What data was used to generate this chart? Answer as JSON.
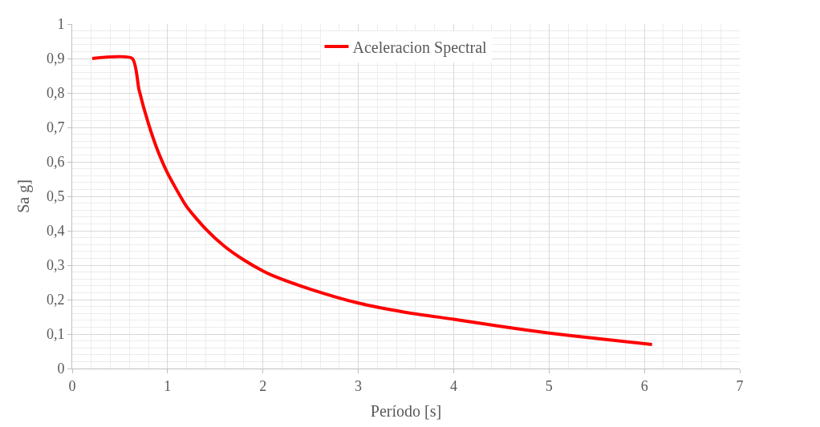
{
  "chart_data": {
    "type": "line",
    "xlabel": "Período [s]",
    "ylabel": "Sa g]",
    "legend": "top",
    "grid": true,
    "marker": "none",
    "line_style": "solid",
    "xlim": [
      0,
      7
    ],
    "xticks": [
      0,
      1,
      2,
      3,
      4,
      5,
      6,
      7
    ],
    "ylim": [
      0,
      1
    ],
    "yticks": [
      0,
      {
        "value": 0.1,
        "label": "0,1"
      },
      {
        "value": 0.2,
        "label": "0,2"
      },
      {
        "value": 0.3,
        "label": "0,3"
      },
      {
        "value": 0.4,
        "label": "0,4"
      },
      {
        "value": 0.5,
        "label": "0,5"
      },
      {
        "value": 0.6,
        "label": "0,6"
      },
      {
        "value": 0.7,
        "label": "0,7"
      },
      {
        "value": 0.8,
        "label": "0,8"
      },
      {
        "value": 0.9,
        "label": "0,9"
      },
      1
    ],
    "x": [
      0.21,
      0.63,
      0.7,
      0.8,
      0.9,
      1.0,
      1.2,
      1.4,
      1.6,
      1.8,
      2.0,
      2.1,
      2.5,
      3.0,
      3.5,
      4.0,
      4.5,
      5.0,
      5.5,
      6.08
    ],
    "series": [
      {
        "name": "Aceleracion Spectral",
        "color": "#ff0000",
        "values": [
          0.9,
          0.9,
          0.81,
          0.71,
          0.63,
          0.567,
          0.47,
          0.405,
          0.354,
          0.315,
          0.283,
          0.27,
          0.23,
          0.19,
          0.163,
          0.143,
          0.122,
          0.103,
          0.087,
          0.07
        ]
      }
    ]
  }
}
